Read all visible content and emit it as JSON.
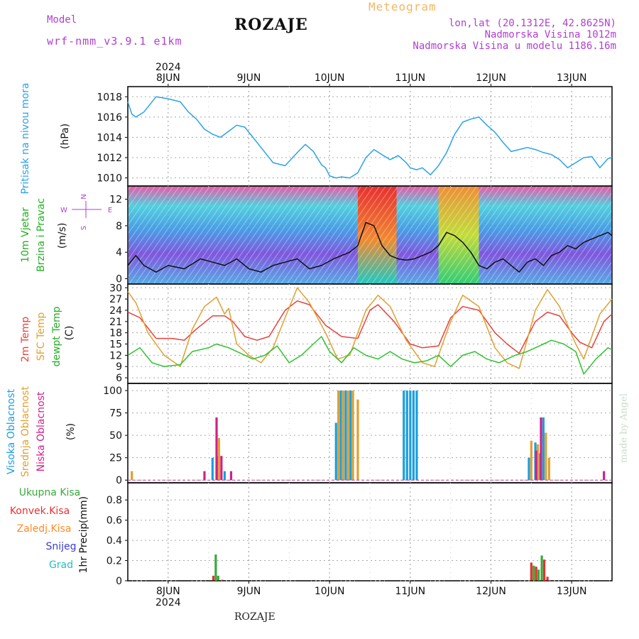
{
  "header": {
    "model_label": "Model",
    "model_name": "wrf-nmm_v3.9.1  e1km",
    "place": "ROZAJE",
    "meteogram_label": "Meteogram",
    "coords": "lon,lat (20.1312E, 42.8625N)",
    "altitude": "Nadmorska Visina 1012m",
    "model_altitude": "Nadmorska Visina u modelu 1186.16m",
    "footer_place": "ROZAJE",
    "watermark": "made by Angel"
  },
  "colors": {
    "pressure": "#29a3e6",
    "temp2m": "#e8403a",
    "sfc_temp": "#e0a030",
    "dewpoint": "#2ec22e",
    "cloud_high": "#1b9ee0",
    "cloud_mid": "#e0a030",
    "cloud_low": "#d0208a",
    "precip_total": "#3aa83a",
    "precip_conv": "#e83030",
    "precip_frz": "#ff8c2a",
    "snow": "#3a3ad8",
    "hail": "#20c0c0",
    "title_accent": "#f0b860",
    "header_purple": "#b040d0"
  },
  "chart_data": {
    "time_axis": {
      "year_label": "2024",
      "days": [
        "8JUN",
        "9JUN",
        "10JUN",
        "11JUN",
        "12JUN",
        "13JUN"
      ]
    },
    "panels": [
      {
        "id": "pressure",
        "type": "line",
        "ylabel": "Pritisak na nivou mora",
        "unit": "(hPa)",
        "yticks": [
          1010,
          1012,
          1014,
          1016,
          1018
        ],
        "ylim": [
          1009.2,
          1019
        ],
        "series": [
          {
            "name": "pressure",
            "t": [
              7.5,
              7.55,
              7.6,
              7.7,
              7.85,
              8.0,
              8.15,
              8.25,
              8.35,
              8.45,
              8.55,
              8.65,
              8.75,
              8.85,
              8.95,
              9.05,
              9.15,
              9.3,
              9.45,
              9.6,
              9.7,
              9.8,
              9.9,
              9.95,
              10.0,
              10.08,
              10.15,
              10.25,
              10.35,
              10.45,
              10.55,
              10.65,
              10.75,
              10.85,
              10.95,
              11.0,
              11.08,
              11.15,
              11.25,
              11.35,
              11.45,
              11.55,
              11.65,
              11.75,
              11.85,
              11.95,
              12.05,
              12.15,
              12.25,
              12.35,
              12.45,
              12.55,
              12.65,
              12.75,
              12.85,
              12.95,
              13.05,
              13.15,
              13.25,
              13.35,
              13.45,
              13.5
            ],
            "values": [
              1017.5,
              1016.3,
              1016.0,
              1016.5,
              1018.0,
              1017.8,
              1017.5,
              1016.5,
              1015.8,
              1014.8,
              1014.3,
              1014.0,
              1014.6,
              1015.2,
              1015.0,
              1014.0,
              1013.0,
              1011.5,
              1011.2,
              1012.5,
              1013.3,
              1012.6,
              1011.3,
              1011.0,
              1010.2,
              1010.0,
              1010.1,
              1010.0,
              1010.5,
              1012.0,
              1012.8,
              1012.3,
              1011.8,
              1012.2,
              1011.5,
              1011.0,
              1010.8,
              1011.0,
              1010.3,
              1011.2,
              1012.5,
              1014.3,
              1015.5,
              1015.8,
              1016.0,
              1015.2,
              1014.5,
              1013.5,
              1012.6,
              1012.8,
              1013.0,
              1012.8,
              1012.5,
              1012.3,
              1011.8,
              1011.0,
              1011.5,
              1012.0,
              1012.1,
              1011.0,
              1011.9,
              1012.0
            ]
          }
        ]
      },
      {
        "id": "wind",
        "type": "line",
        "ylabel": "10m Vjetar",
        "ylabel2": "Brzina i Pravac",
        "unit": "(m/s)",
        "compass": {
          "n": "N",
          "s": "S",
          "e": "E",
          "w": "W"
        },
        "yticks": [
          0,
          4,
          8,
          12
        ],
        "ylim": [
          -0.8,
          14
        ],
        "series": [
          {
            "name": "speed",
            "t": [
              7.5,
              7.6,
              7.7,
              7.85,
              8.0,
              8.2,
              8.4,
              8.55,
              8.7,
              8.85,
              9.0,
              9.15,
              9.3,
              9.45,
              9.6,
              9.75,
              9.9,
              10.05,
              10.15,
              10.25,
              10.35,
              10.45,
              10.55,
              10.65,
              10.75,
              10.85,
              10.95,
              11.05,
              11.15,
              11.25,
              11.35,
              11.45,
              11.55,
              11.65,
              11.75,
              11.85,
              11.95,
              12.05,
              12.15,
              12.25,
              12.35,
              12.45,
              12.55,
              12.65,
              12.75,
              12.85,
              12.95,
              13.05,
              13.15,
              13.25,
              13.35,
              13.45,
              13.5
            ],
            "values": [
              2,
              3.5,
              2,
              1,
              2,
              1.5,
              3,
              2.5,
              2,
              3,
              1.5,
              1,
              2,
              2.5,
              3,
              1.5,
              2,
              3,
              3.5,
              4,
              5,
              8.5,
              8,
              5,
              3.5,
              3,
              2.8,
              3,
              3.5,
              4,
              5,
              7,
              6.5,
              5.5,
              4,
              2,
              1.5,
              2.5,
              3,
              2,
              1,
              2.5,
              3,
              2,
              3.5,
              4,
              5,
              4.5,
              5.5,
              6,
              6.5,
              7,
              6.5
            ]
          }
        ]
      },
      {
        "id": "temperature",
        "type": "line",
        "ylabel": "2m Temp",
        "ylabel2": "SFC Temp",
        "ylabel3": "dewpt Temp",
        "unit": "(C)",
        "yticks": [
          6,
          9,
          12,
          15,
          18,
          21,
          24,
          27,
          30
        ],
        "ylim": [
          4.5,
          31
        ],
        "series": [
          {
            "name": "2m Temp",
            "t": [
              7.5,
              7.65,
              7.85,
              8.05,
              8.2,
              8.35,
              8.55,
              8.7,
              8.8,
              8.95,
              9.1,
              9.25,
              9.45,
              9.6,
              9.75,
              9.95,
              10.15,
              10.35,
              10.5,
              10.6,
              10.8,
              11.0,
              11.15,
              11.35,
              11.5,
              11.65,
              11.85,
              12.05,
              12.2,
              12.35,
              12.55,
              12.7,
              12.85,
              13.0,
              13.1,
              13.25,
              13.4,
              13.5
            ],
            "values": [
              23.5,
              22,
              16.5,
              16.5,
              16,
              19,
              22.5,
              22.5,
              21,
              17,
              16,
              17,
              24,
              26.5,
              25.5,
              20,
              17,
              16.5,
              24,
              25.5,
              21,
              15,
              14,
              14.5,
              22,
              25,
              24,
              18,
              15,
              12.5,
              21,
              23.5,
              22.5,
              18,
              15.5,
              14,
              21,
              23
            ]
          },
          {
            "name": "SFC Temp",
            "t": [
              7.5,
              7.6,
              7.75,
              7.95,
              8.15,
              8.3,
              8.45,
              8.6,
              8.7,
              8.75,
              8.85,
              9.0,
              9.15,
              9.3,
              9.45,
              9.6,
              9.75,
              9.95,
              10.1,
              10.25,
              10.45,
              10.6,
              10.75,
              10.95,
              11.15,
              11.3,
              11.5,
              11.65,
              11.85,
              12.05,
              12.2,
              12.35,
              12.55,
              12.7,
              12.85,
              13.05,
              13.15,
              13.35,
              13.5
            ],
            "values": [
              29,
              26,
              18,
              12,
              9,
              19,
              25,
              27.5,
              23,
              24.5,
              15,
              12,
              10,
              14,
              22,
              30,
              26,
              18,
              11,
              12,
              24,
              28,
              25,
              16,
              10,
              9,
              21,
              28,
              25,
              14,
              10,
              8.5,
              24,
              29.5,
              25,
              15,
              11,
              23,
              27
            ]
          },
          {
            "name": "dewpt Temp",
            "t": [
              7.5,
              7.65,
              7.8,
              7.95,
              8.15,
              8.3,
              8.5,
              8.6,
              8.75,
              8.9,
              9.05,
              9.2,
              9.35,
              9.5,
              9.65,
              9.8,
              9.9,
              10.0,
              10.15,
              10.3,
              10.45,
              10.6,
              10.75,
              10.9,
              11.05,
              11.2,
              11.35,
              11.5,
              11.65,
              11.8,
              11.95,
              12.1,
              12.3,
              12.45,
              12.6,
              12.75,
              12.9,
              13.05,
              13.15,
              13.3,
              13.45,
              13.5
            ],
            "values": [
              12,
              14,
              10,
              9,
              9.5,
              13,
              14,
              15,
              14,
              12.5,
              11,
              12,
              14.5,
              10,
              12,
              15,
              17,
              13,
              10,
              14,
              12,
              11,
              13,
              11,
              10,
              10.5,
              12,
              9,
              12,
              13,
              11,
              10,
              12,
              13,
              14.5,
              16,
              15,
              13,
              7,
              11,
              14,
              13.5
            ]
          }
        ]
      },
      {
        "id": "clouds",
        "type": "bar",
        "ylabel": "Visoka Oblacnost",
        "ylabel2": "Srednja Oblacnost",
        "ylabel3": "Niska Oblacnost",
        "unit": "(%)",
        "yticks": [
          0,
          25,
          50,
          75,
          100
        ],
        "ylim": [
          -3,
          108
        ],
        "series": [
          {
            "name": "Visoka Oblacnost",
            "t": [
              8.55,
              8.62,
              8.7,
              10.08,
              10.14,
              10.2,
              10.26,
              10.92,
              10.96,
              11.0,
              11.04,
              11.08,
              12.47,
              12.55,
              12.61,
              12.65
            ],
            "values": [
              25,
              27,
              10,
              64,
              100,
              100,
              100,
              100,
              100,
              100,
              100,
              100,
              25,
              42,
              30,
              70
            ]
          },
          {
            "name": "Srednja Oblacnost",
            "t": [
              7.55,
              8.63,
              10.11,
              10.17,
              10.23,
              10.29,
              10.35,
              12.5,
              12.58,
              12.68,
              12.72
            ],
            "values": [
              10,
              47,
              100,
              100,
              100,
              100,
              90,
              44,
              40,
              53,
              25
            ]
          },
          {
            "name": "Niska Oblacnost",
            "t": [
              8.45,
              8.6,
              8.66,
              8.78,
              12.56,
              12.62,
              13.4
            ],
            "values": [
              10,
              70,
              27,
              10,
              33,
              70,
              10
            ]
          }
        ]
      },
      {
        "id": "precip",
        "type": "bar",
        "ylabel": "1hr Precip",
        "unit": "(mm)",
        "legend": [
          "Ukupna Kisa",
          "Konvek.Kisa",
          "Zaledj.Kisa",
          "Snijeg",
          "Grad"
        ],
        "yticks": [
          0,
          0.2,
          0.4,
          0.6,
          0.8
        ],
        "ylim": [
          0,
          0.97
        ],
        "series": [
          {
            "name": "Ukupna Kisa",
            "t": [
              8.59,
              8.62,
              12.53,
              12.59,
              12.63
            ],
            "values": [
              0.26,
              0.05,
              0.15,
              0.11,
              0.25
            ]
          },
          {
            "name": "Konvek.Kisa",
            "t": [
              8.56,
              8.67,
              12.5,
              12.56,
              12.66,
              12.7
            ],
            "values": [
              0.05,
              0.01,
              0.18,
              0.14,
              0.21,
              0.04
            ]
          }
        ]
      }
    ]
  }
}
